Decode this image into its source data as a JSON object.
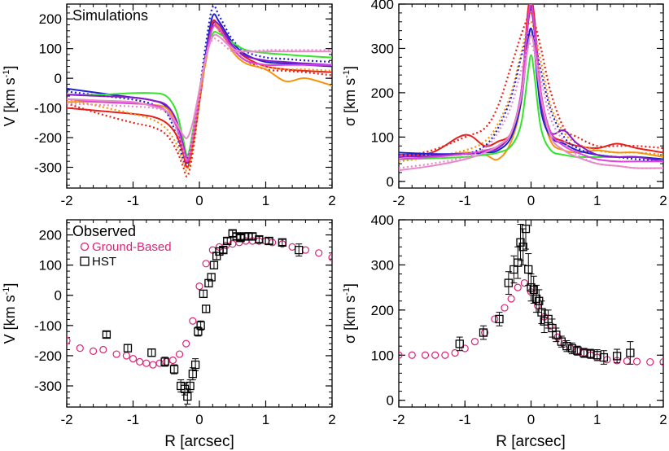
{
  "figure": {
    "panel_labels": {
      "sim": "Simulations",
      "obs": "Observed"
    },
    "axis_titles": {
      "v_ylabel_main": "V [km s",
      "sig_ylabel_main": "σ [km s",
      "exponent": "-1",
      "close": "]",
      "xlabel": "R [arcsec]"
    },
    "legend": {
      "ground": "Ground-Based",
      "hst": "HST"
    },
    "colors": {
      "ground": "#dd2277",
      "hst": "#000000",
      "sim_red": "#e8201c",
      "sim_orange": "#f5940c",
      "sim_green": "#33e52a",
      "sim_blue": "#2020d0",
      "sim_purple": "#8a1cc8",
      "sim_violet": "#dd44dd",
      "sim_pink": "#e889c8"
    }
  },
  "chart_data": [
    {
      "id": "sim_v",
      "type": "line",
      "title": "",
      "annotation": "Simulations",
      "xlabel": "",
      "ylabel": "V [km s-1]",
      "xlim": [
        -2,
        2
      ],
      "ylim": [
        -370,
        250
      ],
      "xticks": [
        -2,
        -1,
        0,
        1,
        2
      ],
      "yticks": [
        -300,
        -200,
        -100,
        0,
        100,
        200
      ],
      "x": [
        -2,
        -1.5,
        -1,
        -0.7,
        -0.5,
        -0.35,
        -0.25,
        -0.18,
        -0.1,
        0,
        0.1,
        0.2,
        0.3,
        0.5,
        0.7,
        1,
        1.3,
        1.6,
        2
      ],
      "series": [
        {
          "color": "sim_blue",
          "dash": false,
          "values": [
            -35,
            -50,
            -65,
            -75,
            -95,
            -160,
            -240,
            -285,
            -210,
            -60,
            90,
            210,
            190,
            120,
            80,
            55,
            50,
            45,
            40
          ]
        },
        {
          "color": "sim_blue",
          "dash": true,
          "values": [
            -45,
            -58,
            -72,
            -88,
            -115,
            -190,
            -270,
            -300,
            -220,
            -50,
            120,
            240,
            210,
            130,
            90,
            70,
            65,
            60,
            55
          ]
        },
        {
          "color": "sim_red",
          "dash": false,
          "values": [
            -100,
            -110,
            -120,
            -130,
            -150,
            -190,
            -250,
            -300,
            -230,
            -80,
            70,
            190,
            170,
            110,
            70,
            40,
            30,
            25,
            20
          ]
        },
        {
          "color": "sim_red",
          "dash": true,
          "values": [
            -85,
            -120,
            -150,
            -165,
            -190,
            -240,
            -295,
            -330,
            -250,
            -80,
            70,
            180,
            160,
            100,
            60,
            30,
            25,
            20,
            10
          ]
        },
        {
          "color": "sim_orange",
          "dash": false,
          "values": [
            -80,
            -80,
            -85,
            -90,
            -100,
            -150,
            -230,
            -280,
            -200,
            -60,
            60,
            180,
            170,
            90,
            50,
            30,
            -10,
            0,
            -25
          ]
        },
        {
          "color": "sim_orange",
          "dash": true,
          "values": [
            -70,
            -95,
            -120,
            -140,
            -170,
            -220,
            -280,
            -310,
            -230,
            -70,
            80,
            170,
            160,
            100,
            60,
            40,
            30,
            30,
            25
          ]
        },
        {
          "color": "sim_green",
          "dash": false,
          "values": [
            -55,
            -55,
            -50,
            -50,
            -60,
            -110,
            -200,
            -260,
            -180,
            -40,
            70,
            150,
            150,
            120,
            95,
            85,
            80,
            75,
            70
          ]
        },
        {
          "color": "sim_purple",
          "dash": false,
          "values": [
            -55,
            -60,
            -65,
            -75,
            -90,
            -140,
            -220,
            -270,
            -200,
            -50,
            80,
            180,
            180,
            110,
            75,
            60,
            55,
            50,
            45
          ]
        },
        {
          "color": "sim_violet",
          "dash": false,
          "values": [
            -70,
            -80,
            -85,
            -90,
            -110,
            -160,
            -230,
            -280,
            -200,
            -50,
            75,
            170,
            165,
            100,
            60,
            45,
            45,
            45,
            45
          ]
        },
        {
          "color": "sim_pink",
          "dash": false,
          "values": [
            -70,
            -75,
            -80,
            -95,
            -110,
            -150,
            -190,
            -200,
            -150,
            -40,
            70,
            140,
            140,
            100,
            90,
            90,
            90,
            90,
            90
          ]
        },
        {
          "color": "sim_pink",
          "dash": true,
          "values": [
            -85,
            -90,
            -95,
            -100,
            -115,
            -170,
            -240,
            -270,
            -190,
            -50,
            80,
            130,
            125,
            90,
            90,
            95,
            95,
            95,
            95
          ]
        }
      ]
    },
    {
      "id": "sim_sigma",
      "type": "line",
      "title": "",
      "xlabel": "",
      "ylabel": "σ [km s-1]",
      "xlim": [
        -2,
        2
      ],
      "ylim": [
        -15,
        400
      ],
      "xticks": [
        -2,
        -1,
        0,
        1,
        2
      ],
      "yticks": [
        0,
        100,
        200,
        300,
        400
      ],
      "x": [
        -2,
        -1.5,
        -1,
        -0.7,
        -0.5,
        -0.3,
        -0.15,
        -0.05,
        0,
        0.05,
        0.15,
        0.3,
        0.5,
        0.7,
        1,
        1.3,
        1.6,
        2
      ],
      "series": [
        {
          "color": "sim_red",
          "dash": false,
          "values": [
            60,
            65,
            105,
            80,
            90,
            110,
            200,
            380,
            410,
            370,
            200,
            110,
            90,
            80,
            75,
            85,
            75,
            65
          ]
        },
        {
          "color": "sim_red",
          "dash": true,
          "values": [
            55,
            70,
            100,
            120,
            170,
            260,
            330,
            370,
            380,
            360,
            300,
            200,
            120,
            100,
            80,
            80,
            80,
            75
          ]
        },
        {
          "color": "sim_orange",
          "dash": false,
          "values": [
            50,
            55,
            65,
            60,
            50,
            90,
            180,
            350,
            380,
            340,
            180,
            90,
            70,
            65,
            70,
            65,
            65,
            55
          ]
        },
        {
          "color": "sim_orange",
          "dash": true,
          "values": [
            45,
            55,
            70,
            90,
            130,
            200,
            290,
            350,
            360,
            340,
            270,
            170,
            110,
            85,
            70,
            65,
            65,
            60
          ]
        },
        {
          "color": "sim_green",
          "dash": false,
          "values": [
            50,
            52,
            55,
            60,
            65,
            80,
            130,
            240,
            285,
            240,
            120,
            70,
            60,
            55,
            55,
            55,
            55,
            50
          ]
        },
        {
          "color": "sim_blue",
          "dash": false,
          "values": [
            65,
            62,
            62,
            65,
            70,
            100,
            180,
            310,
            345,
            300,
            160,
            100,
            85,
            70,
            60,
            55,
            55,
            50
          ]
        },
        {
          "color": "sim_blue",
          "dash": true,
          "values": [
            60,
            60,
            62,
            80,
            120,
            190,
            280,
            330,
            340,
            320,
            250,
            160,
            100,
            75,
            60,
            55,
            50,
            45
          ]
        },
        {
          "color": "sim_purple",
          "dash": false,
          "values": [
            55,
            58,
            62,
            68,
            75,
            110,
            200,
            350,
            390,
            340,
            180,
            110,
            115,
            85,
            60,
            55,
            55,
            45
          ]
        },
        {
          "color": "sim_violet",
          "dash": false,
          "values": [
            50,
            55,
            62,
            70,
            80,
            110,
            200,
            360,
            400,
            350,
            200,
            110,
            80,
            65,
            50,
            45,
            45,
            45
          ]
        },
        {
          "color": "sim_pink",
          "dash": false,
          "values": [
            25,
            35,
            50,
            65,
            80,
            110,
            190,
            300,
            330,
            300,
            190,
            100,
            70,
            55,
            40,
            35,
            30,
            30
          ]
        },
        {
          "color": "sim_pink",
          "dash": true,
          "values": [
            30,
            40,
            55,
            75,
            110,
            170,
            250,
            300,
            310,
            290,
            230,
            140,
            90,
            60,
            40,
            35,
            30,
            30
          ]
        }
      ]
    },
    {
      "id": "obs_v",
      "type": "scatter",
      "title": "",
      "annotation": "Observed",
      "xlabel": "R [arcsec]",
      "ylabel": "V [km s-1]",
      "xlim": [
        -2,
        2
      ],
      "ylim": [
        -370,
        250
      ],
      "xticks": [
        -2,
        -1,
        0,
        1,
        2
      ],
      "yticks": [
        -300,
        -200,
        -100,
        0,
        100,
        200
      ],
      "series": [
        {
          "name": "Ground-Based",
          "marker": "circle",
          "color": "ground",
          "x": [
            -2.0,
            -1.8,
            -1.6,
            -1.45,
            -1.25,
            -1.1,
            -1.0,
            -0.9,
            -0.8,
            -0.7,
            -0.6,
            -0.5,
            -0.4,
            -0.3,
            -0.2,
            -0.1,
            0.0,
            0.1,
            0.2,
            0.3,
            0.4,
            0.5,
            0.6,
            0.7,
            0.8,
            0.9,
            1.0,
            1.1,
            1.25,
            1.4,
            1.6,
            1.8,
            2.0
          ],
          "y": [
            -150,
            -175,
            -185,
            -180,
            -195,
            -200,
            -210,
            -220,
            -225,
            -230,
            -225,
            -220,
            -215,
            -195,
            -160,
            -85,
            30,
            105,
            150,
            160,
            165,
            170,
            175,
            180,
            180,
            180,
            180,
            175,
            170,
            160,
            150,
            140,
            125
          ]
        },
        {
          "name": "HST",
          "marker": "square",
          "color": "hst",
          "x": [
            -1.4,
            -1.08,
            -0.72,
            -0.52,
            -0.38,
            -0.28,
            -0.22,
            -0.18,
            -0.14,
            -0.1,
            -0.06,
            -0.02,
            0.02,
            0.06,
            0.1,
            0.14,
            0.18,
            0.22,
            0.26,
            0.3,
            0.36,
            0.42,
            0.5,
            0.56,
            0.62,
            0.68,
            0.74,
            0.8,
            0.9,
            1.05,
            1.25,
            1.5
          ],
          "y": [
            -130,
            -175,
            -190,
            -220,
            -245,
            -300,
            -310,
            -335,
            -300,
            -260,
            -230,
            -120,
            -100,
            5,
            -45,
            40,
            60,
            100,
            130,
            145,
            150,
            180,
            205,
            195,
            190,
            195,
            195,
            195,
            185,
            180,
            175,
            150
          ],
          "err": [
            10,
            12,
            12,
            15,
            15,
            20,
            20,
            25,
            20,
            20,
            20,
            15,
            15,
            12,
            12,
            12,
            12,
            12,
            12,
            12,
            10,
            10,
            10,
            10,
            10,
            10,
            10,
            10,
            10,
            10,
            10,
            20
          ]
        }
      ]
    },
    {
      "id": "obs_sigma",
      "type": "scatter",
      "title": "",
      "xlabel": "R [arcsec]",
      "ylabel": "σ [km s-1]",
      "xlim": [
        -2,
        2
      ],
      "ylim": [
        -15,
        400
      ],
      "xticks": [
        -2,
        -1,
        0,
        1,
        2
      ],
      "yticks": [
        0,
        100,
        200,
        300,
        400
      ],
      "series": [
        {
          "name": "Ground-Based",
          "marker": "circle",
          "color": "ground",
          "x": [
            -2.0,
            -1.8,
            -1.6,
            -1.45,
            -1.3,
            -1.15,
            -1.0,
            -0.85,
            -0.7,
            -0.55,
            -0.4,
            -0.3,
            -0.2,
            -0.1,
            0.0,
            0.1,
            0.2,
            0.3,
            0.4,
            0.5,
            0.6,
            0.7,
            0.8,
            0.9,
            1.0,
            1.15,
            1.3,
            1.45,
            1.6,
            1.8,
            2.0
          ],
          "y": [
            100,
            100,
            100,
            100,
            100,
            105,
            115,
            130,
            150,
            180,
            205,
            225,
            250,
            260,
            240,
            210,
            185,
            165,
            140,
            125,
            115,
            110,
            105,
            100,
            95,
            90,
            88,
            87,
            86,
            85,
            85
          ]
        },
        {
          "name": "HST",
          "marker": "square",
          "color": "hst",
          "x": [
            -1.08,
            -0.72,
            -0.48,
            -0.34,
            -0.26,
            -0.2,
            -0.16,
            -0.12,
            -0.08,
            -0.04,
            0.0,
            0.04,
            0.08,
            0.12,
            0.16,
            0.2,
            0.26,
            0.32,
            0.38,
            0.46,
            0.54,
            0.62,
            0.7,
            0.8,
            0.9,
            1.0,
            1.1,
            1.3,
            1.5
          ],
          "y": [
            125,
            150,
            180,
            260,
            290,
            305,
            350,
            340,
            380,
            290,
            250,
            245,
            225,
            220,
            195,
            175,
            180,
            160,
            145,
            130,
            120,
            115,
            110,
            105,
            103,
            100,
            95,
            98,
            105
          ],
          "err": [
            15,
            15,
            15,
            25,
            30,
            35,
            40,
            40,
            45,
            35,
            30,
            30,
            30,
            25,
            25,
            25,
            20,
            20,
            15,
            12,
            12,
            12,
            10,
            10,
            10,
            12,
            15,
            15,
            25
          ]
        }
      ]
    }
  ]
}
